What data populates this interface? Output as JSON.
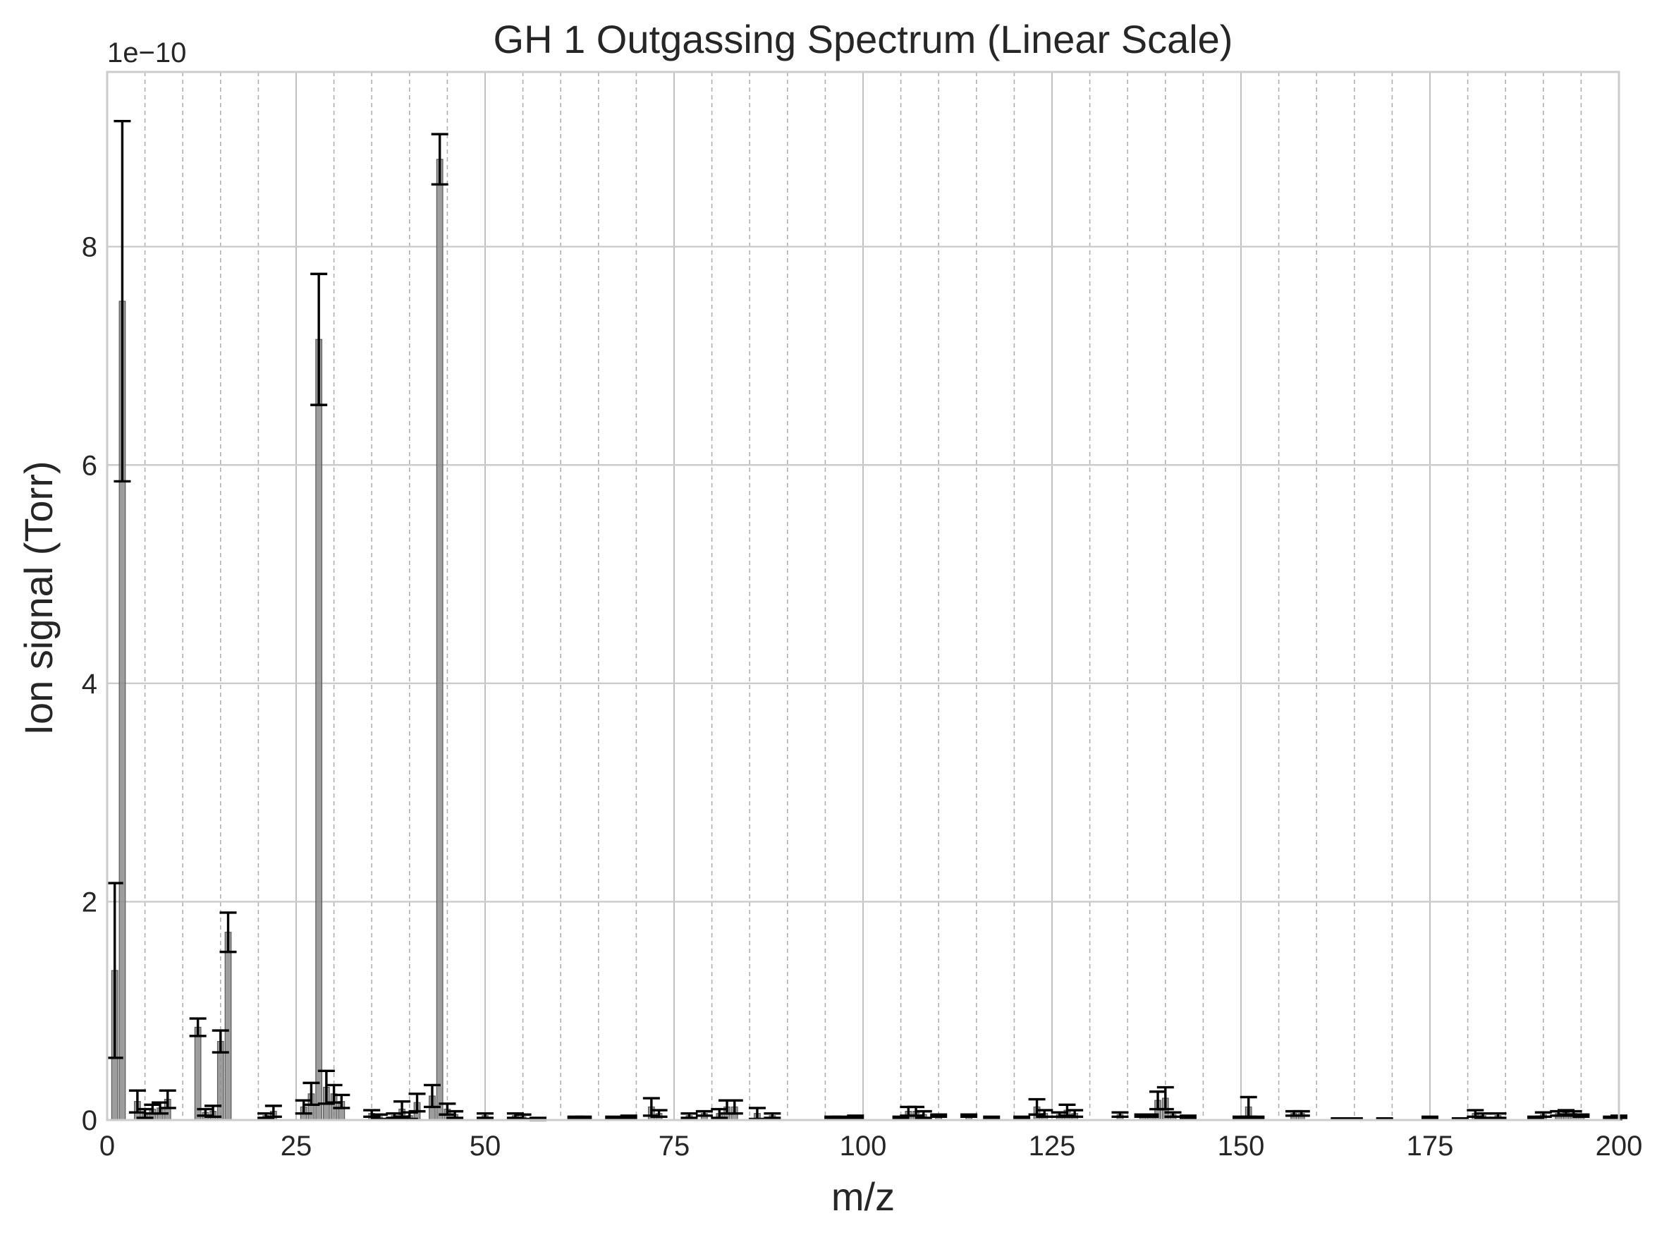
{
  "chart_data": {
    "type": "bar",
    "title": "GH 1 Outgassing Spectrum (Linear Scale)",
    "xlabel": "m/z",
    "ylabel": "Ion signal (Torr)",
    "y_offset_label": "1e−10",
    "xlim": [
      0,
      200
    ],
    "ylim": [
      0,
      9.6
    ],
    "y_scale_factor": 1e-10,
    "xticks": [
      0,
      25,
      50,
      75,
      100,
      125,
      150,
      175,
      200
    ],
    "yticks": [
      0,
      2,
      4,
      6,
      8
    ],
    "grid": true,
    "minor_x_grid_step": 5,
    "bar_color": "#8c8c8c",
    "errorbar_color": "#000000",
    "series": [
      {
        "x": [
          1,
          2,
          4,
          5,
          6,
          7,
          8,
          12,
          13,
          14,
          15,
          16,
          21,
          22,
          26,
          27,
          28,
          29,
          30,
          31,
          35,
          36,
          38,
          39,
          40,
          41,
          43,
          44,
          45,
          46,
          50,
          54,
          55,
          57,
          62,
          63,
          67,
          69,
          72,
          73,
          77,
          79,
          81,
          82,
          83,
          86,
          88,
          96,
          97,
          99,
          105,
          106,
          107,
          108,
          110,
          114,
          117,
          121,
          123,
          124,
          126,
          127,
          128,
          134,
          137,
          138,
          139,
          140,
          141,
          143,
          150,
          151,
          152,
          157,
          158,
          163,
          165,
          169,
          175,
          179,
          181,
          182,
          184,
          189,
          190,
          192,
          193,
          194,
          195,
          199,
          200
        ],
        "values": [
          1.37,
          7.5,
          0.17,
          0.06,
          0.1,
          0.11,
          0.19,
          0.85,
          0.07,
          0.08,
          0.72,
          1.72,
          0.04,
          0.08,
          0.12,
          0.24,
          7.15,
          0.3,
          0.24,
          0.17,
          0.06,
          0.03,
          0.04,
          0.1,
          0.04,
          0.16,
          0.22,
          8.8,
          0.1,
          0.05,
          0.04,
          0.04,
          0.03,
          0.01,
          0.02,
          0.02,
          0.02,
          0.03,
          0.12,
          0.06,
          0.04,
          0.06,
          0.06,
          0.12,
          0.12,
          0.06,
          0.04,
          0.02,
          0.02,
          0.03,
          0.02,
          0.08,
          0.08,
          0.05,
          0.04,
          0.04,
          0.02,
          0.02,
          0.12,
          0.06,
          0.05,
          0.09,
          0.06,
          0.05,
          0.04,
          0.04,
          0.18,
          0.2,
          0.05,
          0.03,
          0.02,
          0.12,
          0.02,
          0.06,
          0.06,
          0.01,
          0.01,
          0.01,
          0.02,
          0.01,
          0.06,
          0.04,
          0.04,
          0.02,
          0.05,
          0.06,
          0.07,
          0.06,
          0.04,
          0.02,
          0.03
        ],
        "errors": [
          0.8,
          1.65,
          0.1,
          0.04,
          0.04,
          0.05,
          0.08,
          0.08,
          0.03,
          0.05,
          0.1,
          0.18,
          0.02,
          0.05,
          0.06,
          0.1,
          0.6,
          0.15,
          0.08,
          0.06,
          0.03,
          0.02,
          0.02,
          0.07,
          0.03,
          0.08,
          0.1,
          0.23,
          0.05,
          0.03,
          0.02,
          0.02,
          0.02,
          0.01,
          0.01,
          0.01,
          0.01,
          0.01,
          0.08,
          0.03,
          0.02,
          0.02,
          0.04,
          0.06,
          0.06,
          0.05,
          0.02,
          0.01,
          0.01,
          0.01,
          0.01,
          0.04,
          0.04,
          0.03,
          0.01,
          0.01,
          0.01,
          0.01,
          0.07,
          0.03,
          0.02,
          0.05,
          0.03,
          0.02,
          0.01,
          0.01,
          0.08,
          0.1,
          0.02,
          0.01,
          0.01,
          0.09,
          0.01,
          0.02,
          0.02,
          0.005,
          0.005,
          0.005,
          0.01,
          0.005,
          0.03,
          0.02,
          0.02,
          0.01,
          0.02,
          0.02,
          0.02,
          0.02,
          0.01,
          0.01,
          0.01
        ]
      }
    ]
  }
}
